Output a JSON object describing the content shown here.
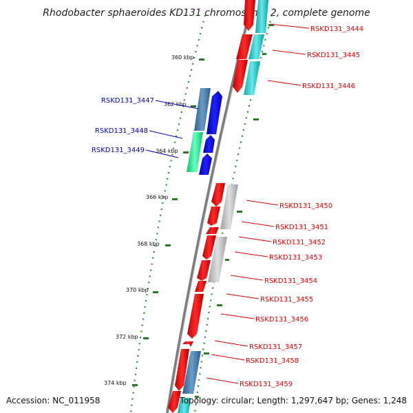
{
  "title": "Rhodobacter sphaeroides KD131 chromosome 2, complete genome",
  "accession": "Accession: NC_011958",
  "topology": "Topology: circular; Length: 1,297,647 bp; Genes: 1,248",
  "colors": {
    "strand_forward": "#e00000",
    "strand_reverse": "#0000e0",
    "cyan": "#22cccc",
    "steel": "#4a7fb0",
    "grey": "#c0c0c0",
    "green": "#22ee99",
    "tick": "#2a7a2a",
    "dots": "#2a8a2a",
    "backbone": "#888888"
  },
  "ticks": [
    {
      "label": "360 kbp"
    },
    {
      "label": "362 kbp"
    },
    {
      "label": "364 kbp"
    },
    {
      "label": "366 kbp"
    },
    {
      "label": "368 kbp"
    },
    {
      "label": "370 kbp"
    },
    {
      "label": "372 kbp"
    },
    {
      "label": "374 kbp"
    }
  ],
  "genes_right": [
    {
      "id": "RSKD131_3444"
    },
    {
      "id": "RSKD131_3445"
    },
    {
      "id": "RSKD131_3446"
    },
    {
      "id": "RSKD131_3450"
    },
    {
      "id": "RSKD131_3451"
    },
    {
      "id": "RSKD131_3452"
    },
    {
      "id": "RSKD131_3453"
    },
    {
      "id": "RSKD131_3454"
    },
    {
      "id": "RSKD131_3455"
    },
    {
      "id": "RSKD131_3456"
    },
    {
      "id": "RSKD131_3457"
    },
    {
      "id": "RSKD131_3458"
    },
    {
      "id": "RSKD131_3459"
    }
  ],
  "genes_left": [
    {
      "id": "RSKD131_3447"
    },
    {
      "id": "RSKD131_3448"
    },
    {
      "id": "RSKD131_3449"
    }
  ]
}
